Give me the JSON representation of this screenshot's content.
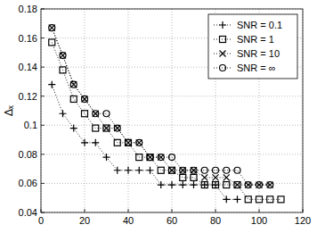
{
  "chart_data": {
    "type": "line",
    "y_label": "Δₓ",
    "x": [
      5,
      10,
      15,
      20,
      25,
      30,
      35,
      40,
      45,
      50,
      55,
      60,
      65,
      70,
      75,
      80,
      85,
      90,
      95,
      100,
      105,
      110
    ],
    "series": [
      {
        "name": "SNR = 0.1",
        "color": "#000000",
        "marker": "plus",
        "line_style": "dotted",
        "values": [
          0.128,
          0.108,
          0.098,
          0.088,
          0.088,
          0.078,
          0.069,
          0.069,
          0.069,
          0.069,
          0.059,
          0.059,
          0.059,
          0.059,
          0.059,
          0.059,
          0.049,
          0.049,
          null,
          null,
          null,
          null
        ]
      },
      {
        "name": "SNR = 1",
        "color": "#000000",
        "marker": "square",
        "line_style": "dotted",
        "values": [
          0.157,
          0.138,
          0.118,
          0.108,
          0.098,
          0.098,
          0.088,
          0.088,
          0.078,
          0.078,
          0.069,
          0.069,
          0.064,
          0.064,
          0.059,
          0.059,
          0.059,
          0.059,
          0.049,
          0.049,
          0.049,
          0.049
        ]
      },
      {
        "name": "SNR = 10",
        "color": "#000000",
        "marker": "x",
        "line_style": "dotted",
        "values": [
          0.167,
          0.148,
          0.128,
          0.118,
          0.108,
          0.098,
          0.098,
          0.088,
          0.088,
          0.078,
          0.078,
          0.069,
          0.069,
          0.069,
          0.064,
          0.064,
          0.064,
          0.059,
          0.059,
          0.059,
          0.059,
          null
        ]
      },
      {
        "name": "SNR = ∞",
        "color": "#000000",
        "marker": "circle",
        "line_style": "dotted",
        "values": [
          0.167,
          0.148,
          0.128,
          0.118,
          0.108,
          0.108,
          0.098,
          0.088,
          0.088,
          0.078,
          0.078,
          0.078,
          0.069,
          0.069,
          0.069,
          0.069,
          0.069,
          0.069,
          0.059,
          0.059,
          0.059,
          null
        ]
      }
    ],
    "xlim": [
      0,
      120
    ],
    "xticks": [
      0,
      20,
      40,
      60,
      80,
      100,
      120
    ],
    "ylim": [
      0.04,
      0.18
    ],
    "yticks": [
      0.04,
      0.06,
      0.08,
      0.1,
      0.12,
      0.14,
      0.16,
      0.18
    ],
    "grid": true,
    "legend": "upper right"
  }
}
